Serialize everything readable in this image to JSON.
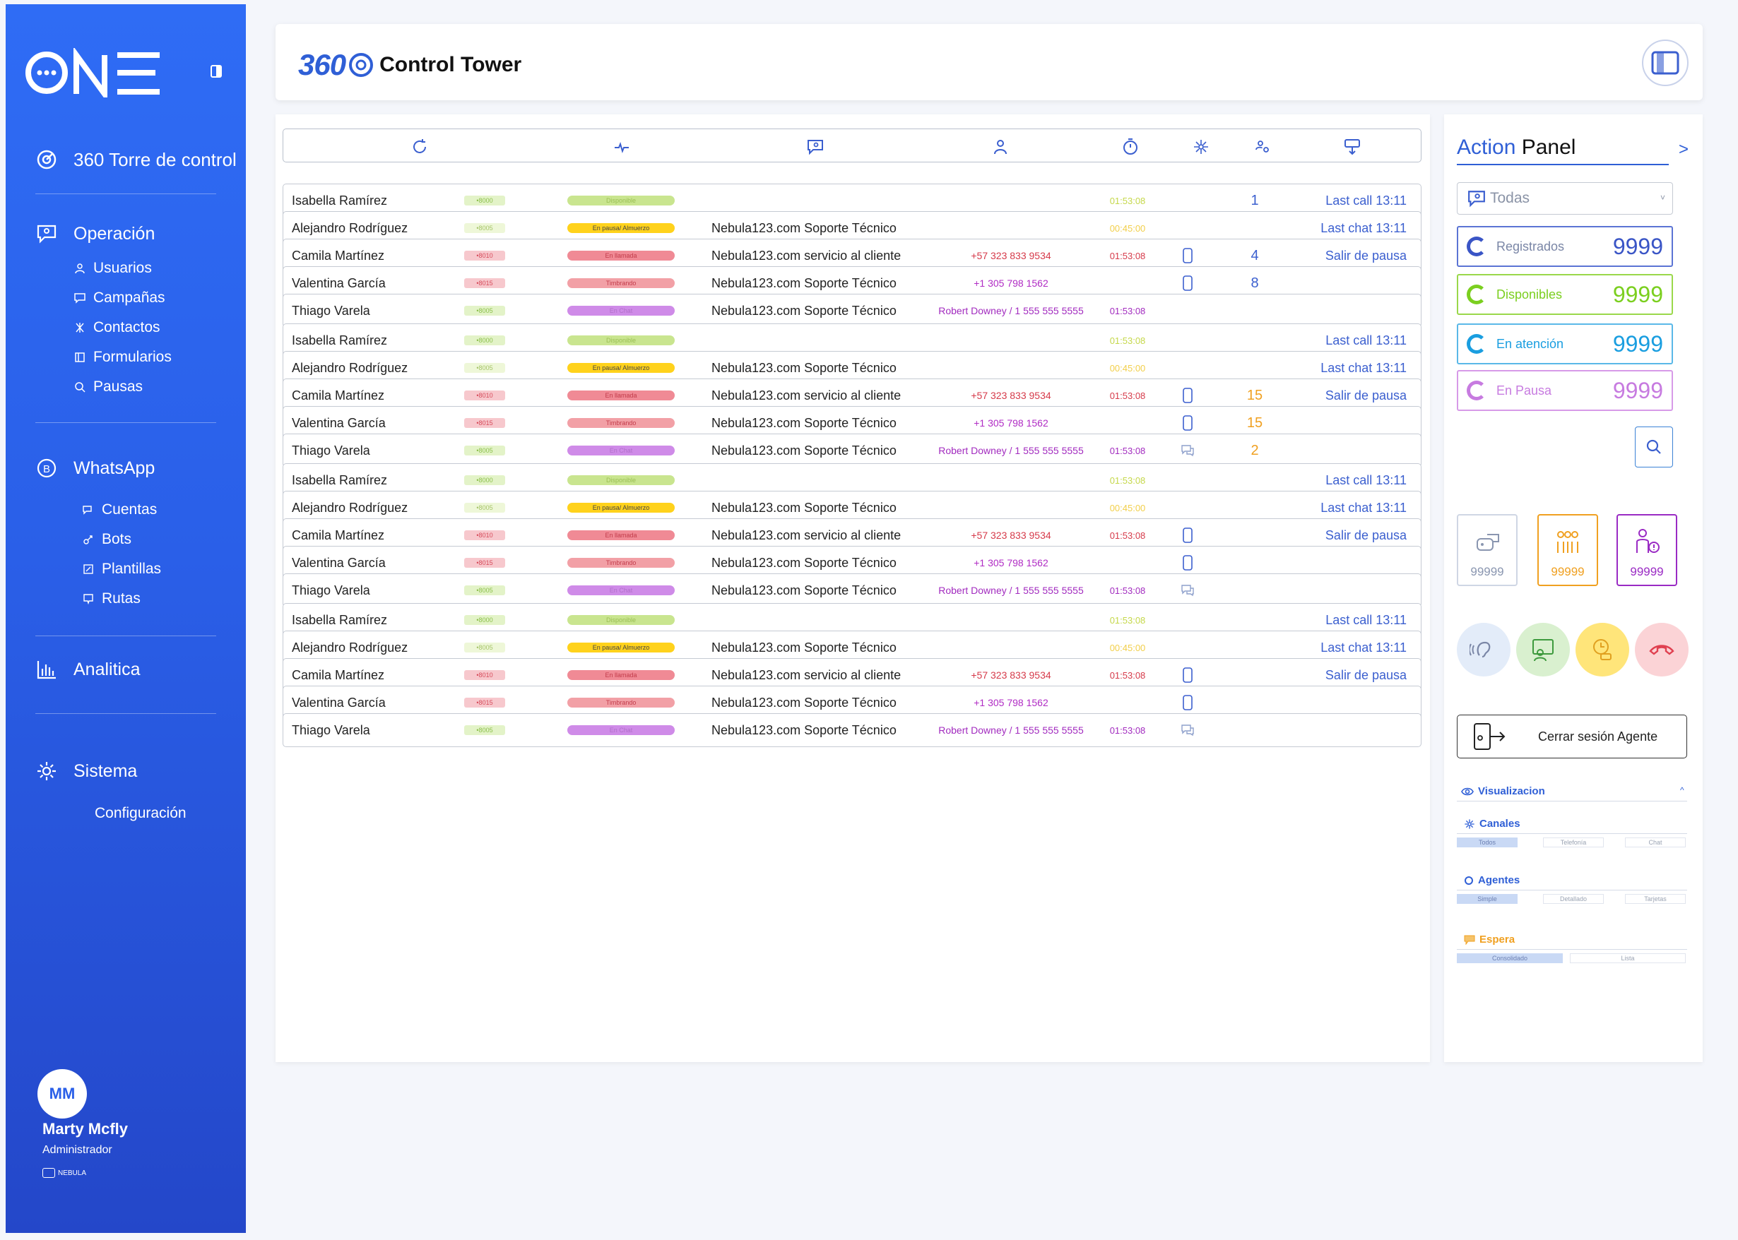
{
  "sidebar": {
    "logo_text": "ONE",
    "main_nav": [
      {
        "label": "360 Torre de control",
        "icon": "gauge-icon"
      },
      {
        "label": "Operación",
        "icon": "chat-person-icon"
      },
      {
        "label": "WhatsApp",
        "icon": "whatsapp-icon"
      },
      {
        "label": "Analitica",
        "icon": "bar-chart-icon"
      },
      {
        "label": "Sistema",
        "icon": "gear-icon"
      }
    ],
    "operacion_items": [
      {
        "label": "Usuarios",
        "icon": "user-icon"
      },
      {
        "label": "Campañas",
        "icon": "campaign-icon"
      },
      {
        "label": "Contactos",
        "icon": "contacts-icon"
      },
      {
        "label": "Formularios",
        "icon": "form-icon"
      },
      {
        "label": "Pausas",
        "icon": "pause-icon"
      }
    ],
    "whatsapp_items": [
      {
        "label": "Cuentas",
        "icon": "chat-icon"
      },
      {
        "label": "Bots",
        "icon": "bot-icon"
      },
      {
        "label": "Plantillas",
        "icon": "template-icon"
      },
      {
        "label": "Rutas",
        "icon": "route-icon"
      }
    ],
    "sistema_items": [
      {
        "label": "Configuración"
      }
    ],
    "user": {
      "initials": "MM",
      "name": "Marty Mcfly",
      "role": "Administrador",
      "brand": "NEBULA"
    }
  },
  "header": {
    "logo_360": "360",
    "title": "Control Tower"
  },
  "table": {
    "header_icons": [
      "refresh-icon",
      "activity-icon",
      "campaign-icon",
      "agent-icon",
      "timer-icon",
      "channels-icon",
      "queue-icon",
      "routing-icon"
    ],
    "rows": [
      {
        "name": "Isabella Ramírez",
        "ext": "•8000",
        "status": "Disponible",
        "kind": "available",
        "campaign": "",
        "contact": "",
        "time": "01:53:08",
        "channel": "",
        "count": "1",
        "count_color": "#3b5fcf",
        "action": "Last call 13:11"
      },
      {
        "name": "Alejandro Rodríguez",
        "ext": "•8005",
        "status": "En pausa/ Almuerzo",
        "kind": "pause",
        "campaign": "Nebula123.com Soporte Técnico",
        "contact": "",
        "time": "00:45:00",
        "channel": "",
        "count": "",
        "count_color": "#3b5fcf",
        "action": "Last chat 13:11"
      },
      {
        "name": "Camila Martínez",
        "ext": "•8010",
        "status": "En llamada",
        "kind": "call",
        "campaign": "Nebula123.com servicio al cliente",
        "contact": "+57 323 833 9534",
        "time": "01:53:08",
        "channel": "phone",
        "count": "4",
        "count_color": "#3b5fcf",
        "action": "Salir de pausa"
      },
      {
        "name": "Valentina García",
        "ext": "•8015",
        "status": "Timbrando",
        "kind": "ring",
        "campaign": "Nebula123.com Soporte Técnico",
        "contact": "+1 305 798 1562",
        "time": "",
        "channel": "phone",
        "count": "8",
        "count_color": "#3b5fcf",
        "action": ""
      },
      {
        "name": "Thiago Varela",
        "ext": "•8005",
        "status": "En Chat",
        "kind": "chat",
        "campaign": "Nebula123.com Soporte Técnico",
        "contact": "Robert Downey / 1 555 555 5555",
        "time": "01:53:08",
        "channel": "",
        "count": "",
        "count_color": "#3b5fcf",
        "action": ""
      },
      {
        "name": "Isabella Ramírez",
        "ext": "•8000",
        "status": "Disponible",
        "kind": "available",
        "campaign": "",
        "contact": "",
        "time": "01:53:08",
        "channel": "",
        "count": "",
        "count_color": "#3b5fcf",
        "action": "Last call 13:11"
      },
      {
        "name": "Alejandro Rodríguez",
        "ext": "•8005",
        "status": "En pausa/ Almuerzo",
        "kind": "pause",
        "campaign": "Nebula123.com Soporte Técnico",
        "contact": "",
        "time": "00:45:00",
        "channel": "",
        "count": "",
        "count_color": "#3b5fcf",
        "action": "Last chat 13:11"
      },
      {
        "name": "Camila Martínez",
        "ext": "•8010",
        "status": "En llamada",
        "kind": "call",
        "campaign": "Nebula123.com servicio al cliente",
        "contact": "+57 323 833 9534",
        "time": "01:53:08",
        "channel": "phone",
        "count": "15",
        "count_color": "#f0a020",
        "action": "Salir de pausa"
      },
      {
        "name": "Valentina García",
        "ext": "•8015",
        "status": "Timbrando",
        "kind": "ring",
        "campaign": "Nebula123.com Soporte Técnico",
        "contact": "+1 305 798 1562",
        "time": "",
        "channel": "phone",
        "count": "15",
        "count_color": "#f0a020",
        "action": ""
      },
      {
        "name": "Thiago Varela",
        "ext": "•8005",
        "status": "En Chat",
        "kind": "chat",
        "campaign": "Nebula123.com Soporte Técnico",
        "contact": "Robert Downey / 1 555 555 5555",
        "time": "01:53:08",
        "channel": "chat",
        "count": "2",
        "count_color": "#f0a020",
        "action": ""
      },
      {
        "name": "Isabella Ramírez",
        "ext": "•8000",
        "status": "Disponible",
        "kind": "available",
        "campaign": "",
        "contact": "",
        "time": "01:53:08",
        "channel": "",
        "count": "",
        "count_color": "#3b5fcf",
        "action": "Last call 13:11"
      },
      {
        "name": "Alejandro Rodríguez",
        "ext": "•8005",
        "status": "En pausa/ Almuerzo",
        "kind": "pause",
        "campaign": "Nebula123.com Soporte Técnico",
        "contact": "",
        "time": "00:45:00",
        "channel": "",
        "count": "",
        "count_color": "#3b5fcf",
        "action": "Last chat 13:11"
      },
      {
        "name": "Camila Martínez",
        "ext": "•8010",
        "status": "En llamada",
        "kind": "call",
        "campaign": "Nebula123.com servicio al cliente",
        "contact": "+57 323 833 9534",
        "time": "01:53:08",
        "channel": "phone",
        "count": "",
        "count_color": "#3b5fcf",
        "action": "Salir de pausa"
      },
      {
        "name": "Valentina García",
        "ext": "•8015",
        "status": "Timbrando",
        "kind": "ring",
        "campaign": "Nebula123.com Soporte Técnico",
        "contact": "+1 305 798 1562",
        "time": "",
        "channel": "phone",
        "count": "",
        "count_color": "#3b5fcf",
        "action": ""
      },
      {
        "name": "Thiago Varela",
        "ext": "•8005",
        "status": "En Chat",
        "kind": "chat",
        "campaign": "Nebula123.com Soporte Técnico",
        "contact": "Robert Downey / 1 555 555 5555",
        "time": "01:53:08",
        "channel": "chat",
        "count": "",
        "count_color": "#3b5fcf",
        "action": ""
      },
      {
        "name": "Isabella Ramírez",
        "ext": "•8000",
        "status": "Disponible",
        "kind": "available",
        "campaign": "",
        "contact": "",
        "time": "01:53:08",
        "channel": "",
        "count": "",
        "count_color": "#3b5fcf",
        "action": "Last call 13:11"
      },
      {
        "name": "Alejandro Rodríguez",
        "ext": "•8005",
        "status": "En pausa/ Almuerzo",
        "kind": "pause",
        "campaign": "Nebula123.com Soporte Técnico",
        "contact": "",
        "time": "00:45:00",
        "channel": "",
        "count": "",
        "count_color": "#3b5fcf",
        "action": "Last chat 13:11"
      },
      {
        "name": "Camila Martínez",
        "ext": "•8010",
        "status": "En llamada",
        "kind": "call",
        "campaign": "Nebula123.com servicio al cliente",
        "contact": "+57 323 833 9534",
        "time": "01:53:08",
        "channel": "phone",
        "count": "",
        "count_color": "#3b5fcf",
        "action": "Salir de pausa"
      },
      {
        "name": "Valentina García",
        "ext": "•8015",
        "status": "Timbrando",
        "kind": "ring",
        "campaign": "Nebula123.com Soporte Técnico",
        "contact": "+1 305 798 1562",
        "time": "",
        "channel": "phone",
        "count": "",
        "count_color": "#3b5fcf",
        "action": ""
      },
      {
        "name": "Thiago Varela",
        "ext": "•8005",
        "status": "En Chat",
        "kind": "chat",
        "campaign": "Nebula123.com Soporte Técnico",
        "contact": "Robert Downey / 1 555 555 5555",
        "time": "01:53:08",
        "channel": "chat",
        "count": "",
        "count_color": "#3b5fcf",
        "action": ""
      }
    ]
  },
  "kinds": {
    "available": {
      "ext_bg": "#e3f3c8",
      "ext_fg": "#8bbf4a",
      "status_bg": "#c9e58f",
      "status_fg": "#9bbf55",
      "contact_fg": "#a0a0a0",
      "time_fg": "#c5d84a"
    },
    "pause": {
      "ext_bg": "#eef7d8",
      "ext_fg": "#a5c467",
      "status_bg": "#ffd21c",
      "status_fg": "#444444",
      "contact_fg": "#a0a0a0",
      "time_fg": "#f2cf4a"
    },
    "call": {
      "ext_bg": "#f7c8cd",
      "ext_fg": "#d64a5a",
      "status_bg": "#f08a95",
      "status_fg": "#c23b4a",
      "contact_fg": "#d63a4a",
      "time_fg": "#d63a4a"
    },
    "ring": {
      "ext_bg": "#f7c8cd",
      "ext_fg": "#d64a5a",
      "status_bg": "#f2a0a6",
      "status_fg": "#c23b4a",
      "contact_fg": "#b02bc4",
      "time_fg": "#d63a4a"
    },
    "chat": {
      "ext_bg": "#e3f3c8",
      "ext_fg": "#8bbf4a",
      "status_bg": "#cf8be8",
      "status_fg": "#b070c8",
      "contact_fg": "#a22bbf",
      "time_fg": "#a22bbf"
    }
  },
  "action_panel": {
    "title_a": "Action",
    "title_b": " Panel",
    "arrow": ">",
    "filter_value": "Todas",
    "stats": [
      {
        "label": "Registrados",
        "value": "9999",
        "color": "#3a55c6",
        "border": "#5b74d4",
        "label_color": "#7a86a6"
      },
      {
        "label": "Disponibles",
        "value": "9999",
        "color": "#7bcf1f",
        "border": "#9ad84a",
        "label_color": "#7bcf1f"
      },
      {
        "label": "En atención",
        "value": "9999",
        "color": "#1a9ee0",
        "border": "#5ab8e8",
        "label_color": "#1a9ee0"
      },
      {
        "label": "En Pausa",
        "value": "9999",
        "color": "#c77be0",
        "border": "#d79ae8",
        "label_color": "#c77be0"
      }
    ],
    "queue_cards": [
      {
        "value": "99999",
        "icon": "bot-chat-icon",
        "color": "#8a96b0",
        "border": "#cfd6e4"
      },
      {
        "value": "99999",
        "icon": "queue-people-icon",
        "color": "#f0a020",
        "border": "#f0a020"
      },
      {
        "value": "99999",
        "icon": "agent-alert-icon",
        "color": "#9a2bc4",
        "border": "#9a2bc4"
      }
    ],
    "logout_label": "Cerrar sesión Agente",
    "viz_label": "Visualizacion",
    "channels": {
      "label": "Canales",
      "options": [
        "Todos",
        "Telefonía",
        "Chat"
      ]
    },
    "agents": {
      "label": "Agentes",
      "options": [
        "Simple",
        "Detallado",
        "Tarjetas"
      ]
    },
    "wait": {
      "label": "Espera",
      "options": [
        "Consolidado",
        "Lista"
      ]
    }
  }
}
